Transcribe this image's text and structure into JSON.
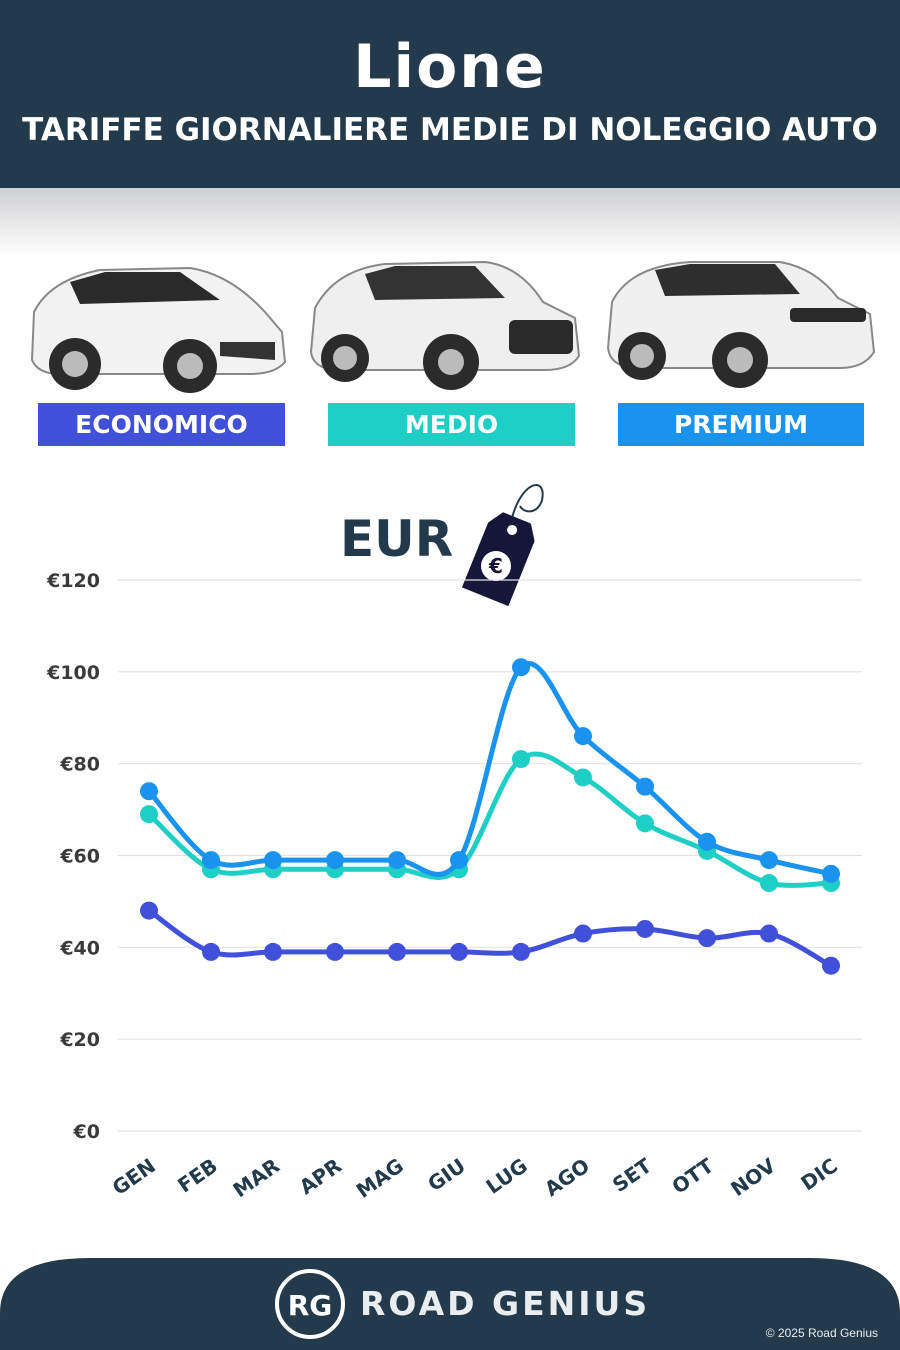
{
  "header": {
    "city": "Lione",
    "subtitle": "TARIFFE GIORNALIERE MEDIE DI NOLEGGIO AUTO"
  },
  "categories": [
    {
      "label": "ECONOMICO",
      "color": "#4150d8"
    },
    {
      "label": "MEDIO",
      "color": "#1fcfc6"
    },
    {
      "label": "PREMIUM",
      "color": "#1993ee"
    }
  ],
  "currency_label": "EUR",
  "currency_symbol": "€",
  "chart_data": {
    "type": "line",
    "x": [
      "GEN",
      "FEB",
      "MAR",
      "APR",
      "MAG",
      "GIU",
      "LUG",
      "AGO",
      "SET",
      "OTT",
      "NOV",
      "DIC"
    ],
    "series": [
      {
        "name": "ECONOMICO",
        "color": "#4150d8",
        "values": [
          48,
          39,
          39,
          39,
          39,
          39,
          39,
          43,
          44,
          42,
          43,
          36
        ]
      },
      {
        "name": "MEDIO",
        "color": "#1fcfc6",
        "values": [
          69,
          57,
          57,
          57,
          57,
          57,
          81,
          77,
          67,
          61,
          54,
          54
        ]
      },
      {
        "name": "PREMIUM",
        "color": "#1993ee",
        "values": [
          74,
          59,
          59,
          59,
          59,
          59,
          101,
          86,
          75,
          63,
          59,
          56
        ]
      }
    ],
    "yticks": [
      "€0",
      "€20",
      "€40",
      "€60",
      "€80",
      "€100",
      "€120"
    ],
    "ylim": [
      0,
      120
    ],
    "grid": true
  },
  "footer": {
    "brand": "ROAD GENIUS",
    "logo": "RG",
    "copyright": "© 2025 Road Genius"
  }
}
